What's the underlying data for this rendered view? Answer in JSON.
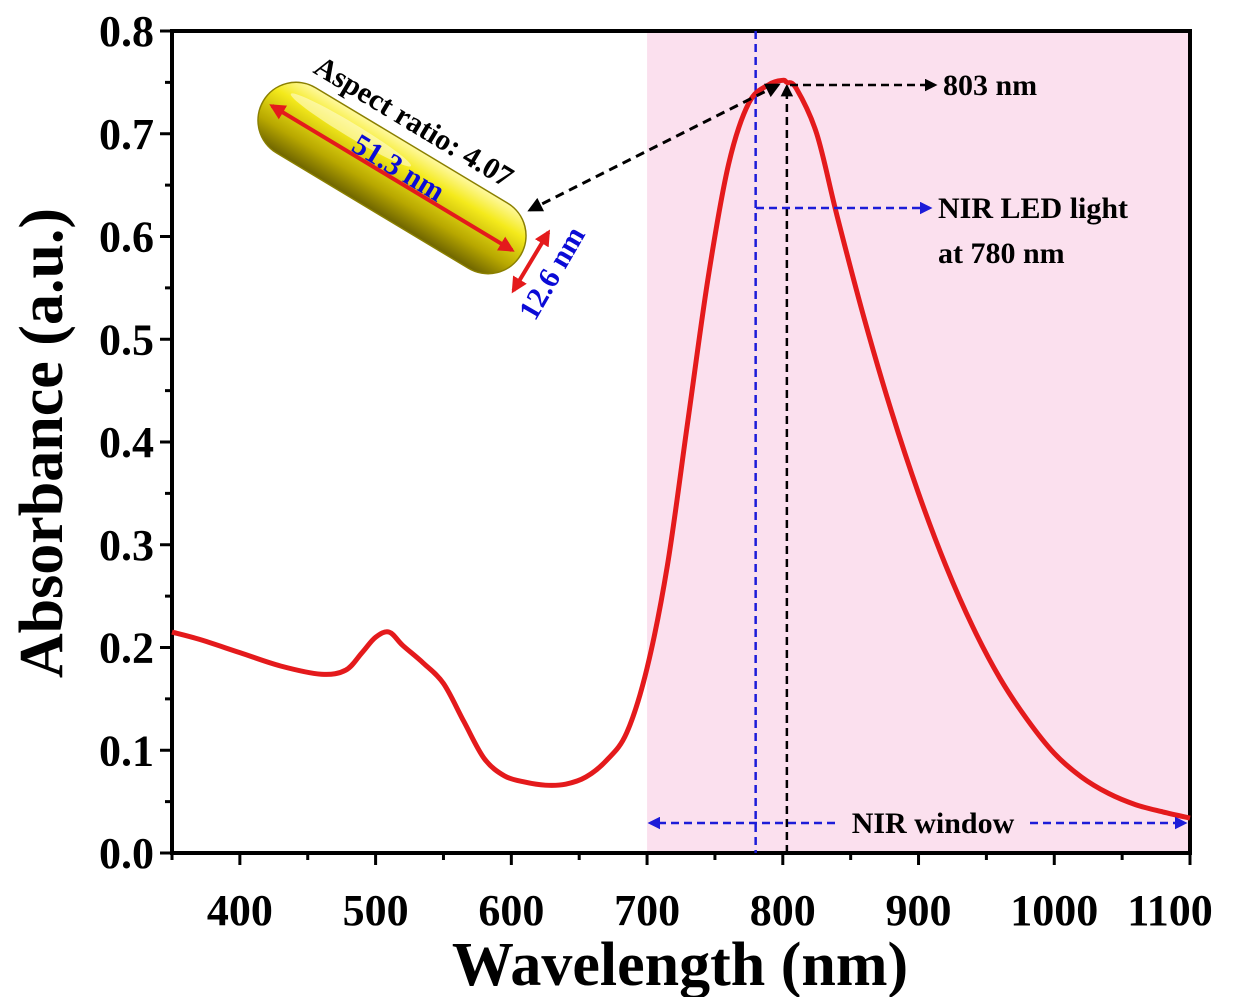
{
  "chart_data": {
    "type": "line",
    "xlabel": "Wavelength (nm)",
    "ylabel": "Absorbance (a.u.)",
    "xlim": [
      350,
      1100
    ],
    "ylim": [
      0.0,
      0.8
    ],
    "x_ticks": [
      400,
      500,
      600,
      700,
      800,
      900,
      1000,
      1100
    ],
    "y_ticks": [
      "0.0",
      "0.1",
      "0.2",
      "0.3",
      "0.4",
      "0.5",
      "0.6",
      "0.7",
      "0.8"
    ],
    "grid": false,
    "series": [
      {
        "color": "#e41a1c",
        "x": [
          350,
          370,
          400,
          430,
          460,
          478,
          490,
          500,
          510,
          520,
          535,
          550,
          565,
          580,
          595,
          610,
          625,
          640,
          655,
          670,
          685,
          700,
          715,
          730,
          745,
          760,
          775,
          790,
          800,
          803,
          810,
          825,
          840,
          860,
          880,
          900,
          920,
          940,
          960,
          980,
          1000,
          1020,
          1040,
          1060,
          1080,
          1100
        ],
        "y": [
          0.215,
          0.208,
          0.195,
          0.182,
          0.174,
          0.178,
          0.195,
          0.21,
          0.215,
          0.202,
          0.185,
          0.165,
          0.128,
          0.092,
          0.075,
          0.069,
          0.066,
          0.067,
          0.074,
          0.09,
          0.117,
          0.18,
          0.28,
          0.42,
          0.56,
          0.67,
          0.73,
          0.748,
          0.752,
          0.75,
          0.744,
          0.7,
          0.62,
          0.52,
          0.43,
          0.35,
          0.28,
          0.22,
          0.17,
          0.13,
          0.097,
          0.074,
          0.058,
          0.047,
          0.04,
          0.034
        ]
      }
    ],
    "nir_region": {
      "x_start": 700,
      "x_end": 1100,
      "color": "#fbe0ee",
      "label": "NIR window"
    },
    "reference_lines": [
      {
        "x": 780,
        "color": "#1c1cd8",
        "style": "dashed"
      },
      {
        "x": 803,
        "color": "#000000",
        "style": "dashed"
      }
    ],
    "annotations": {
      "peak_label": "803 nm",
      "led_label_line1": "NIR LED light",
      "led_label_line2": "at 780 nm",
      "aspect_ratio": "Aspect ratio: 4.07",
      "rod_length": "51.3 nm",
      "rod_width": "12.6 nm"
    }
  }
}
